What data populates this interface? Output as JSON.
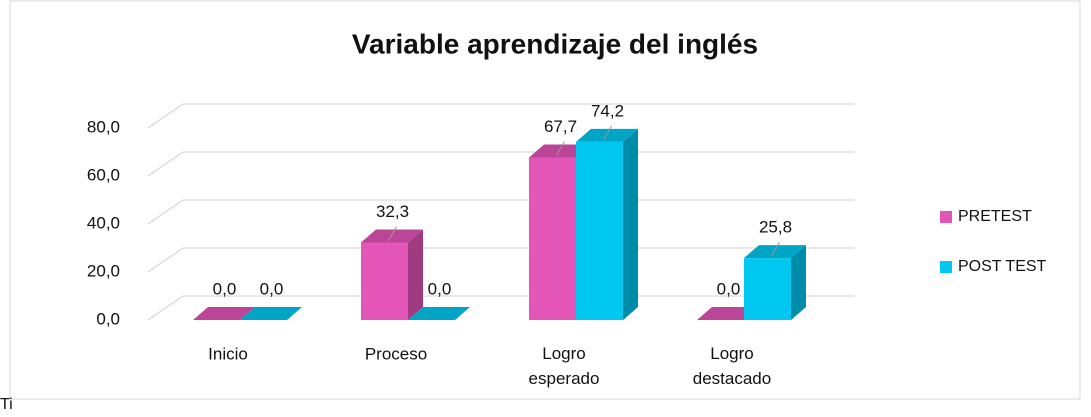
{
  "chart_data": {
    "type": "bar3d",
    "title": "Variable aprendizaje del inglés",
    "categories": [
      "Inicio",
      "Proceso",
      "Logro esperado",
      "Logro destacado"
    ],
    "series": [
      {
        "name": "PRETEST",
        "color": "#e455b8",
        "values": [
          0,
          32.3,
          67.7,
          0
        ],
        "value_labels": [
          "0,0",
          "32,3",
          "67,7",
          "0,0"
        ]
      },
      {
        "name": "POST TEST",
        "color": "#00c8f0",
        "values": [
          0,
          0,
          74.2,
          25.8
        ],
        "value_labels": [
          "0,0",
          "0,0",
          "74,2",
          "25,8"
        ]
      }
    ],
    "ylim": [
      0,
      80
    ],
    "yticks": [
      {
        "value": 0,
        "label": "0,0"
      },
      {
        "value": 20,
        "label": "20,0"
      },
      {
        "value": 40,
        "label": "40,0"
      },
      {
        "value": 60,
        "label": "60,0"
      },
      {
        "value": 80,
        "label": "80,0"
      }
    ],
    "grid": true,
    "legend": "right"
  },
  "caption": "Ti"
}
